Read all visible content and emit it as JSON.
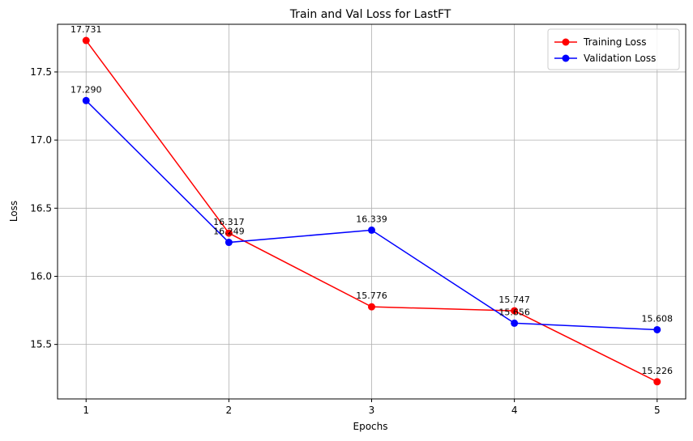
{
  "chart_data": {
    "type": "line",
    "title": "Train and Val Loss for LastFT",
    "xlabel": "Epochs",
    "ylabel": "Loss",
    "x": [
      1,
      2,
      3,
      4,
      5
    ],
    "xlim": [
      0.8,
      5.2
    ],
    "ylim": [
      15.1,
      17.85
    ],
    "yticks": [
      15.5,
      16.0,
      16.5,
      17.0,
      17.5
    ],
    "ytick_labels": [
      "15.5",
      "16.0",
      "16.5",
      "17.0",
      "17.5"
    ],
    "xtick_labels": [
      "1",
      "2",
      "3",
      "4",
      "5"
    ],
    "grid": true,
    "legend_position": "top-right",
    "series": [
      {
        "name": "Training Loss",
        "color": "#ff0000",
        "values": [
          17.731,
          16.317,
          15.776,
          15.747,
          15.226
        ],
        "labels": [
          "17.731",
          "16.317",
          "15.776",
          "15.747",
          "15.226"
        ]
      },
      {
        "name": "Validation Loss",
        "color": "#0000ff",
        "values": [
          17.29,
          16.249,
          16.339,
          15.656,
          15.608
        ],
        "labels": [
          "17.290",
          "16.249",
          "16.339",
          "15.656",
          "15.608"
        ]
      }
    ]
  }
}
